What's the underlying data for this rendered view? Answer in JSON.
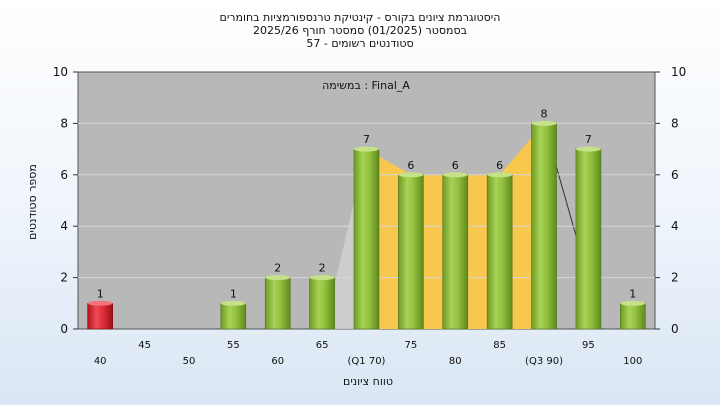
{
  "title": {
    "line1": "היסטוגרמת ציונים בקורס - קינטיקת טרנספורמציות בחומרים",
    "line2": "בסמסטר  (01/2025)  סמסטר חורף 2025/26",
    "line3": "57 - סטודנטים רשומים"
  },
  "annotation": "במשימה : Final_A",
  "chart_data": {
    "type": "bar",
    "title": "היסטוגרמת ציונים בקורס - קינטיקת טרנספורמציות בחומרים",
    "xlabel": "טווח ציונים",
    "ylabel": "מספר סטודנטים",
    "ylim": [
      0,
      10
    ],
    "yticks": [
      0,
      2,
      4,
      6,
      8,
      10
    ],
    "grid": true,
    "categories": [
      "40",
      "45",
      "50",
      "55",
      "60",
      "65",
      "(Q1 70)",
      "75",
      "80",
      "85",
      "(Q3 90)",
      "95",
      "100"
    ],
    "values": [
      1,
      0,
      0,
      1,
      2,
      2,
      7,
      6,
      6,
      6,
      8,
      7,
      1
    ],
    "data_labels": [
      "1",
      "",
      "",
      "1",
      "2",
      "2",
      "7",
      "6",
      "6",
      "6",
      "8",
      "7",
      "1"
    ],
    "colors": {
      "highlight_bar": "#d8252e",
      "bar": "#8fbf3a",
      "quartile_band": "#f8c74e",
      "plot_background": "#b8b8b8"
    }
  }
}
